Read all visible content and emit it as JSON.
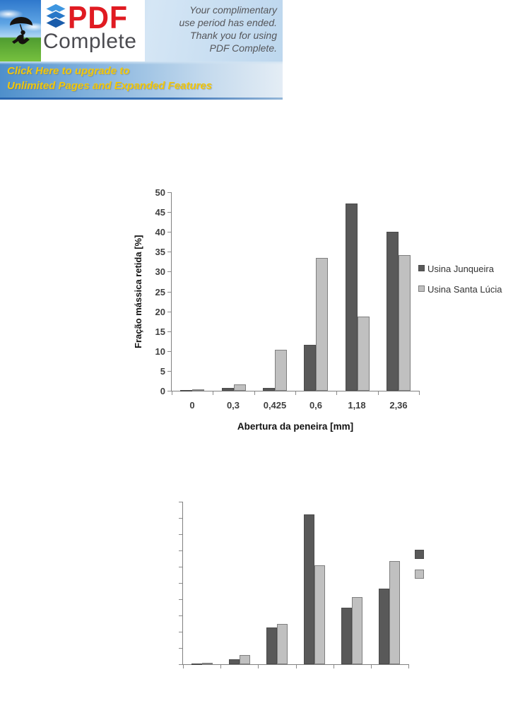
{
  "banner": {
    "logo_pdf": "PDF",
    "logo_complete": "Complete",
    "message_lines": [
      "Your complimentary",
      "use period has ended.",
      "Thank you for using",
      "PDF Complete."
    ],
    "upgrade_line1": "Click Here to upgrade to",
    "upgrade_line2": "Unlimited Pages and Expanded Features",
    "colors": {
      "pdf_red": "#e01b22",
      "complete_gray": "#4b4b50",
      "upgrade_yellow": "#f2c70a",
      "strip_border_blue": "#2a65ae"
    }
  },
  "chart_data": [
    {
      "type": "bar",
      "title": "",
      "xlabel": "Abertura da peneira [mm]",
      "ylabel": "Fração mássica retida [%]",
      "categories": [
        "0",
        "0,3",
        "0,425",
        "0,6",
        "1,18",
        "2,36"
      ],
      "series": [
        {
          "name": "Usina Junqueira",
          "color": "#595959",
          "border": "#4a4a4a",
          "values": [
            0.2,
            0.7,
            0.7,
            11.5,
            47.2,
            40.1
          ]
        },
        {
          "name": "Usina Santa Lúcia",
          "color": "#c0c0c0",
          "border": "#7f7f7f",
          "values": [
            0.3,
            1.6,
            10.4,
            33.5,
            18.7,
            34.2
          ]
        }
      ],
      "ylim": [
        0,
        50
      ],
      "ytick_step": 5,
      "ytick_labels": [
        "0",
        "5",
        "10",
        "15",
        "20",
        "25",
        "30",
        "35",
        "40",
        "45",
        "50"
      ],
      "grid": false,
      "legend_position": "right",
      "axis_labels_visible": true,
      "legend_text_visible": true
    },
    {
      "type": "bar",
      "title": "",
      "xlabel": "",
      "ylabel": "",
      "categories": [
        "",
        "",
        "",
        "",
        "",
        ""
      ],
      "series": [
        {
          "name": "",
          "color": "#595959",
          "border": "#4a4a4a",
          "values": [
            0.1,
            1.5,
            11.2,
            46.0,
            17.3,
            23.3
          ]
        },
        {
          "name": "",
          "color": "#c0c0c0",
          "border": "#7f7f7f",
          "values": [
            0.4,
            2.8,
            12.5,
            30.4,
            20.6,
            31.7
          ]
        }
      ],
      "ylim": [
        0,
        50
      ],
      "ytick_step": 5,
      "ytick_labels": [],
      "grid": false,
      "legend_position": "right",
      "axis_labels_visible": false,
      "legend_text_visible": false
    }
  ]
}
